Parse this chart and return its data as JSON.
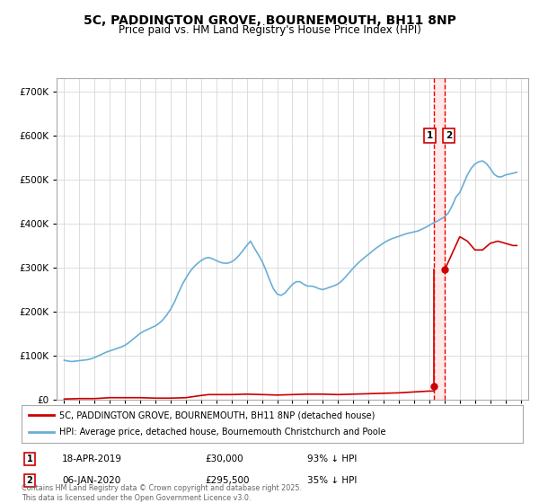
{
  "title": "5C, PADDINGTON GROVE, BOURNEMOUTH, BH11 8NP",
  "subtitle": "Price paid vs. HM Land Registry's House Price Index (HPI)",
  "hpi_color": "#6baed6",
  "price_color": "#cc0000",
  "vline_color": "#ee0000",
  "shade_color": "#ffe0e0",
  "annotation_box_color": "#cc0000",
  "hpi_x": [
    1995.0,
    1995.25,
    1995.5,
    1995.75,
    1996.0,
    1996.25,
    1996.5,
    1996.75,
    1997.0,
    1997.25,
    1997.5,
    1997.75,
    1998.0,
    1998.25,
    1998.5,
    1998.75,
    1999.0,
    1999.25,
    1999.5,
    1999.75,
    2000.0,
    2000.25,
    2000.5,
    2000.75,
    2001.0,
    2001.25,
    2001.5,
    2001.75,
    2002.0,
    2002.25,
    2002.5,
    2002.75,
    2003.0,
    2003.25,
    2003.5,
    2003.75,
    2004.0,
    2004.25,
    2004.5,
    2004.75,
    2005.0,
    2005.25,
    2005.5,
    2005.75,
    2006.0,
    2006.25,
    2006.5,
    2006.75,
    2007.0,
    2007.25,
    2007.5,
    2007.75,
    2008.0,
    2008.25,
    2008.5,
    2008.75,
    2009.0,
    2009.25,
    2009.5,
    2009.75,
    2010.0,
    2010.25,
    2010.5,
    2010.75,
    2011.0,
    2011.25,
    2011.5,
    2011.75,
    2012.0,
    2012.25,
    2012.5,
    2012.75,
    2013.0,
    2013.25,
    2013.5,
    2013.75,
    2014.0,
    2014.25,
    2014.5,
    2014.75,
    2015.0,
    2015.25,
    2015.5,
    2015.75,
    2016.0,
    2016.25,
    2016.5,
    2016.75,
    2017.0,
    2017.25,
    2017.5,
    2017.75,
    2018.0,
    2018.25,
    2018.5,
    2018.75,
    2019.0,
    2019.25,
    2019.5,
    2019.75,
    2020.0,
    2020.25,
    2020.5,
    2020.75,
    2021.0,
    2021.25,
    2021.5,
    2021.75,
    2022.0,
    2022.25,
    2022.5,
    2022.75,
    2023.0,
    2023.25,
    2023.5,
    2023.75,
    2024.0,
    2024.25,
    2024.5,
    2024.75
  ],
  "hpi_y": [
    90000,
    88000,
    87000,
    88000,
    89000,
    90000,
    91000,
    93000,
    96000,
    100000,
    104000,
    108000,
    111000,
    114000,
    117000,
    120000,
    124000,
    130000,
    137000,
    144000,
    151000,
    156000,
    160000,
    164000,
    168000,
    174000,
    182000,
    193000,
    206000,
    222000,
    242000,
    261000,
    276000,
    290000,
    301000,
    309000,
    316000,
    321000,
    323000,
    320000,
    316000,
    312000,
    310000,
    310000,
    313000,
    319000,
    328000,
    339000,
    350000,
    360000,
    344000,
    330000,
    315000,
    295000,
    272000,
    252000,
    240000,
    237000,
    242000,
    252000,
    262000,
    268000,
    268000,
    262000,
    258000,
    258000,
    256000,
    252000,
    250000,
    253000,
    256000,
    259000,
    263000,
    270000,
    279000,
    289000,
    299000,
    308000,
    316000,
    323000,
    330000,
    337000,
    344000,
    350000,
    356000,
    361000,
    365000,
    368000,
    371000,
    374000,
    377000,
    379000,
    381000,
    383000,
    387000,
    391000,
    396000,
    401000,
    405000,
    410000,
    415000,
    424000,
    440000,
    460000,
    470000,
    490000,
    510000,
    525000,
    535000,
    540000,
    542000,
    536000,
    525000,
    512000,
    506000,
    506000,
    510000,
    512000,
    514000,
    516000
  ],
  "red_line_x": [
    1995.0,
    1996.0,
    1997.0,
    1997.5,
    1998.0,
    1999.0,
    2000.0,
    2001.0,
    2002.0,
    2003.0,
    2004.0,
    2004.5,
    2005.0,
    2006.0,
    2007.0,
    2008.0,
    2009.0,
    2010.0,
    2011.0,
    2012.0,
    2013.0,
    2014.0,
    2015.0,
    2016.0,
    2017.0,
    2017.5,
    2018.0,
    2018.5,
    2019.0,
    2019.3
  ],
  "red_line_y": [
    2000,
    3000,
    3000,
    4000,
    5000,
    5000,
    5000,
    4000,
    4000,
    5000,
    10000,
    12000,
    12000,
    12000,
    13000,
    12000,
    11000,
    12000,
    13000,
    13000,
    12000,
    13000,
    14000,
    15000,
    16000,
    17000,
    18000,
    19000,
    20000,
    20000
  ],
  "transaction1_date": 2019.29,
  "transaction1_price": 30000,
  "transaction2_date": 2020.02,
  "transaction2_price": 295500,
  "post_trans_x": [
    2020.02,
    2021.0,
    2021.5,
    2022.0,
    2022.5,
    2023.0,
    2023.5,
    2024.0,
    2024.5,
    2024.75
  ],
  "post_trans_y": [
    295500,
    370000,
    360000,
    340000,
    340000,
    355000,
    360000,
    355000,
    350000,
    350000
  ],
  "xlim": [
    1994.5,
    2025.5
  ],
  "ylim": [
    0,
    730000
  ],
  "yticks": [
    0,
    100000,
    200000,
    300000,
    400000,
    500000,
    600000,
    700000
  ],
  "legend_red": "5C, PADDINGTON GROVE, BOURNEMOUTH, BH11 8NP (detached house)",
  "legend_blue": "HPI: Average price, detached house, Bournemouth Christchurch and Poole",
  "tr1_date_str": "18-APR-2019",
  "tr1_price_str": "£30,000",
  "tr1_pct_str": "93% ↓ HPI",
  "tr2_date_str": "06-JAN-2020",
  "tr2_price_str": "£295,500",
  "tr2_pct_str": "35% ↓ HPI",
  "footer": "Contains HM Land Registry data © Crown copyright and database right 2025.\nThis data is licensed under the Open Government Licence v3.0."
}
